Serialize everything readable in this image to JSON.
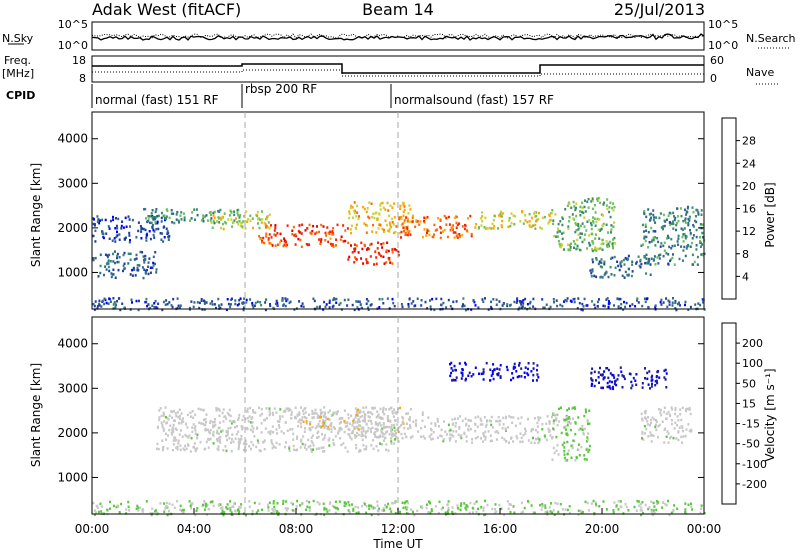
{
  "header": {
    "title_left": "Adak West (fitACF)",
    "title_center": "Beam 14",
    "title_right": "25/Jul/2013"
  },
  "noise_panel": {
    "left_label": "N.Sky",
    "left_ticks": [
      "10^5",
      "10^0"
    ],
    "right_label": "N.Search",
    "right_ticks": [
      "10^5",
      "10^0"
    ]
  },
  "freq_panel": {
    "left_label_1": "Freq.",
    "left_label_2": "[MHz]",
    "left_ticks": [
      "18",
      "8"
    ],
    "right_label": "Nave",
    "right_ticks": [
      "60",
      "0"
    ]
  },
  "cpid": {
    "label": "CPID",
    "modes": [
      "normal (fast) 151 RF",
      "rbsp 200 RF",
      "normalsound (fast) 157 RF"
    ]
  },
  "colors": {
    "power_scale": [
      "#0000ff",
      "#1f3fa0",
      "#2f6a8a",
      "#3a8a70",
      "#6abf5a",
      "#c8d23c",
      "#ffa500",
      "#ff6a00",
      "#ff2000",
      "#e00000"
    ],
    "velocity_scale": [
      "#e00000",
      "#ff6a00",
      "#ffa500",
      "#c8c8c8",
      "#c8c8c8",
      "#5ac83c",
      "#2a8a4a",
      "#1a1aa0",
      "#0000ff"
    ]
  },
  "chart_data": [
    {
      "type": "heatmap",
      "name": "power",
      "xlabel": "",
      "ylabel": "Slant Range [km]",
      "x_ticks": [
        "00:00",
        "04:00",
        "08:00",
        "12:00",
        "16:00",
        "20:00",
        "00:00"
      ],
      "y_ticks": [
        "1000",
        "2000",
        "3000",
        "4000"
      ],
      "xlim": [
        0,
        24
      ],
      "ylim": [
        180,
        4600
      ],
      "colorbar_label": "Power [dB]",
      "colorbar_ticks": [
        "4",
        "8",
        "12",
        "16",
        "20",
        "24",
        "28"
      ],
      "colorbar_range": [
        0,
        32
      ],
      "bands": [
        {
          "t": [
            0,
            2.5
          ],
          "r": [
            900,
            1500
          ],
          "v": 7
        },
        {
          "t": [
            0,
            3.0
          ],
          "r": [
            1700,
            2300
          ],
          "v": 5
        },
        {
          "t": [
            2.0,
            6.0
          ],
          "r": [
            2100,
            2450
          ],
          "v": 12
        },
        {
          "t": [
            4.5,
            7.0
          ],
          "r": [
            2000,
            2400
          ],
          "v": 17
        },
        {
          "t": [
            6.5,
            10.0
          ],
          "r": [
            1600,
            2100
          ],
          "v": 26
        },
        {
          "t": [
            10.0,
            12.0
          ],
          "r": [
            1200,
            1700
          ],
          "v": 28
        },
        {
          "t": [
            10.0,
            12.5
          ],
          "r": [
            1900,
            2600
          ],
          "v": 20
        },
        {
          "t": [
            12.0,
            15.0
          ],
          "r": [
            1800,
            2300
          ],
          "v": 24
        },
        {
          "t": [
            15.0,
            18.0
          ],
          "r": [
            2000,
            2400
          ],
          "v": 18
        },
        {
          "t": [
            18.0,
            20.5
          ],
          "r": [
            1500,
            2700
          ],
          "v": 14
        },
        {
          "t": [
            19.5,
            22.0
          ],
          "r": [
            900,
            1400
          ],
          "v": 8
        },
        {
          "t": [
            21.5,
            24.0
          ],
          "r": [
            1200,
            2500
          ],
          "v": 10
        },
        {
          "t": [
            0,
            24.0
          ],
          "r": [
            180,
            450
          ],
          "v": 6
        }
      ]
    },
    {
      "type": "heatmap",
      "name": "velocity",
      "xlabel": "Time UT",
      "ylabel": "Slant Range [km]",
      "x_ticks": [
        "00:00",
        "04:00",
        "08:00",
        "12:00",
        "16:00",
        "20:00",
        "00:00"
      ],
      "y_ticks": [
        "1000",
        "2000",
        "3000",
        "4000"
      ],
      "xlim": [
        0,
        24
      ],
      "ylim": [
        180,
        4600
      ],
      "colorbar_label": "Velocity [m s⁻¹]",
      "colorbar_ticks": [
        "-200",
        "-100",
        "-50",
        "-15",
        "15",
        "50",
        "100",
        "200"
      ],
      "colorbar_range": [
        -250,
        250
      ],
      "bands": [
        {
          "t": [
            2.5,
            12.0
          ],
          "r": [
            1600,
            2600
          ],
          "v": 0
        },
        {
          "t": [
            8.0,
            10.5
          ],
          "r": [
            2100,
            2500
          ],
          "v": -70
        },
        {
          "t": [
            10.0,
            13.0
          ],
          "r": [
            1900,
            2600
          ],
          "v": -60
        },
        {
          "t": [
            13.0,
            18.0
          ],
          "r": [
            1800,
            2400
          ],
          "v": 0
        },
        {
          "t": [
            14.0,
            17.5
          ],
          "r": [
            3200,
            3600
          ],
          "v": 200
        },
        {
          "t": [
            18.0,
            19.5
          ],
          "r": [
            1400,
            2600
          ],
          "v": 40
        },
        {
          "t": [
            19.5,
            22.5
          ],
          "r": [
            3000,
            3500
          ],
          "v": 180
        },
        {
          "t": [
            21.5,
            23.5
          ],
          "r": [
            1800,
            2600
          ],
          "v": 0
        },
        {
          "t": [
            0,
            24.0
          ],
          "r": [
            180,
            500
          ],
          "v": 30
        }
      ]
    }
  ]
}
